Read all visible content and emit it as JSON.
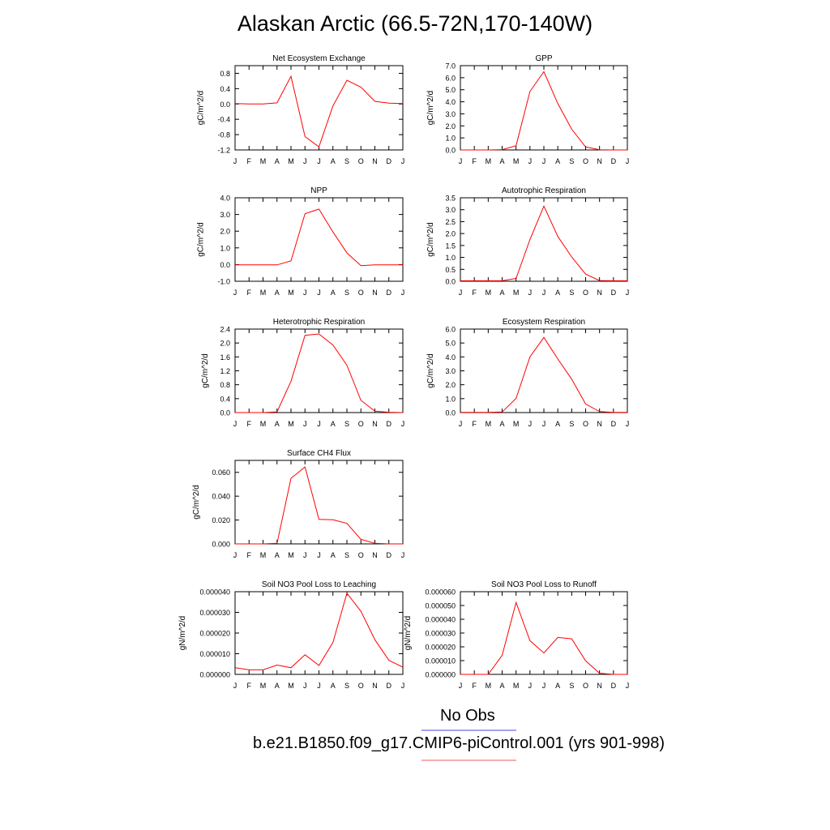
{
  "title": "Alaskan Arctic (66.5-72N,170-140W)",
  "month_labels": [
    "J",
    "F",
    "M",
    "A",
    "M",
    "J",
    "J",
    "A",
    "S",
    "O",
    "N",
    "D",
    "J"
  ],
  "legend": {
    "obs_label": "No Obs",
    "obs_color": "#6a6af0",
    "case_label": "b.e21.B1850.f09_g17.CMIP6-piControl.001 (yrs 901-998)",
    "case_color": "#f07a7a"
  },
  "line_color": "#ff0000",
  "chart_data": [
    {
      "type": "line",
      "title": "Net Ecosystem Exchange",
      "ylabel": "gC/m^2/d",
      "ylim": [
        -1.2,
        1.0
      ],
      "yticks": [
        -1.2,
        -0.8,
        -0.4,
        0.0,
        0.4,
        0.8
      ],
      "ytick_labels": [
        "-1.2",
        "-0.8",
        "-0.4",
        "0.0",
        "0.4",
        "0.8"
      ],
      "x": [
        1,
        2,
        3,
        4,
        5,
        6,
        7,
        8,
        9,
        10,
        11,
        12,
        13
      ],
      "values": [
        0.01,
        0.0,
        0.0,
        0.03,
        0.72,
        -0.85,
        -1.12,
        -0.05,
        0.62,
        0.44,
        0.07,
        0.02,
        0.01
      ]
    },
    {
      "type": "line",
      "title": "GPP",
      "ylabel": "gC/m^2/d",
      "ylim": [
        0,
        7
      ],
      "yticks": [
        0,
        1,
        2,
        3,
        4,
        5,
        6,
        7
      ],
      "ytick_labels": [
        "0.0",
        "1.0",
        "2.0",
        "3.0",
        "4.0",
        "5.0",
        "6.0",
        "7.0"
      ],
      "x": [
        1,
        2,
        3,
        4,
        5,
        6,
        7,
        8,
        9,
        10,
        11,
        12,
        13
      ],
      "values": [
        0,
        0,
        0,
        0.03,
        0.35,
        4.85,
        6.5,
        3.85,
        1.72,
        0.25,
        0.02,
        0,
        0
      ]
    },
    {
      "type": "line",
      "title": "NPP",
      "ylabel": "gC/m^2/d",
      "ylim": [
        -1,
        4
      ],
      "yticks": [
        -1,
        0,
        1,
        2,
        3,
        4
      ],
      "ytick_labels": [
        "-1.0",
        "0.0",
        "1.0",
        "2.0",
        "3.0",
        "4.0"
      ],
      "x": [
        1,
        2,
        3,
        4,
        5,
        6,
        7,
        8,
        9,
        10,
        11,
        12,
        13
      ],
      "values": [
        -0.02,
        -0.02,
        -0.02,
        -0.02,
        0.22,
        3.05,
        3.32,
        1.95,
        0.7,
        -0.07,
        -0.02,
        -0.02,
        -0.02
      ]
    },
    {
      "type": "line",
      "title": "Autotrophic Respiration",
      "ylabel": "gC/m^2/d",
      "ylim": [
        0,
        3.5
      ],
      "yticks": [
        0,
        0.5,
        1,
        1.5,
        2,
        2.5,
        3,
        3.5
      ],
      "ytick_labels": [
        "0.0",
        "0.5",
        "1.0",
        "1.5",
        "2.0",
        "2.5",
        "3.0",
        "3.5"
      ],
      "x": [
        1,
        2,
        3,
        4,
        5,
        6,
        7,
        8,
        9,
        10,
        11,
        12,
        13
      ],
      "values": [
        0.02,
        0.02,
        0.02,
        0.02,
        0.12,
        1.75,
        3.15,
        1.88,
        1.02,
        0.3,
        0.03,
        0.02,
        0.02
      ]
    },
    {
      "type": "line",
      "title": "Heterotrophic Respiration",
      "ylabel": "gC/m^2/d",
      "ylim": [
        0,
        2.4
      ],
      "yticks": [
        0,
        0.4,
        0.8,
        1.2,
        1.6,
        2.0,
        2.4
      ],
      "ytick_labels": [
        "0.0",
        "0.4",
        "0.8",
        "1.2",
        "1.6",
        "2.0",
        "2.4"
      ],
      "x": [
        1,
        2,
        3,
        4,
        5,
        6,
        7,
        8,
        9,
        10,
        11,
        12,
        13
      ],
      "values": [
        0.0,
        0.0,
        0.0,
        0.02,
        0.9,
        2.22,
        2.26,
        1.94,
        1.36,
        0.35,
        0.04,
        0.01,
        0.0
      ]
    },
    {
      "type": "line",
      "title": "Ecosystem Respiration",
      "ylabel": "gC/m^2/d",
      "ylim": [
        0,
        6
      ],
      "yticks": [
        0,
        1,
        2,
        3,
        4,
        5,
        6
      ],
      "ytick_labels": [
        "0.0",
        "1.0",
        "2.0",
        "3.0",
        "4.0",
        "5.0",
        "6.0"
      ],
      "x": [
        1,
        2,
        3,
        4,
        5,
        6,
        7,
        8,
        9,
        10,
        11,
        12,
        13
      ],
      "values": [
        0.02,
        0.02,
        0.02,
        0.04,
        1.02,
        4.0,
        5.4,
        3.85,
        2.4,
        0.62,
        0.07,
        0.02,
        0.02
      ]
    },
    {
      "type": "line",
      "title": "Surface CH4 Flux",
      "ylabel": "gC/m^2/d",
      "ylim": [
        0,
        0.07
      ],
      "yticks": [
        0,
        0.02,
        0.04,
        0.06
      ],
      "ytick_labels": [
        "0.000",
        "0.020",
        "0.040",
        "0.060"
      ],
      "x": [
        1,
        2,
        3,
        4,
        5,
        6,
        7,
        8,
        9,
        10,
        11,
        12,
        13
      ],
      "values": [
        0.0,
        0.0,
        0.0,
        0.0005,
        0.055,
        0.0645,
        0.0205,
        0.0202,
        0.0172,
        0.0038,
        0.0005,
        0.0,
        0.0
      ]
    },
    {
      "type": "line",
      "title": "Soil NO3 Pool Loss to Leaching",
      "ylabel": "gN/m^2/d",
      "ylim": [
        0,
        4e-05
      ],
      "yticks": [
        0,
        1e-05,
        2e-05,
        3e-05,
        4e-05
      ],
      "ytick_labels": [
        "0.000000",
        "0.000010",
        "0.000020",
        "0.000030",
        "0.000040"
      ],
      "x": [
        1,
        2,
        3,
        4,
        5,
        6,
        7,
        8,
        9,
        10,
        11,
        12,
        13
      ],
      "values": [
        3.2e-06,
        2.2e-06,
        2.2e-06,
        4.5e-06,
        3.2e-06,
        9.5e-06,
        4.3e-06,
        1.55e-05,
        3.93e-05,
        3.05e-05,
        1.68e-05,
        6.8e-06,
        3.5e-06
      ]
    },
    {
      "type": "line",
      "title": "Soil NO3 Pool Loss to Runoff",
      "ylabel": "gN/m^2/d",
      "ylim": [
        0,
        6e-05
      ],
      "yticks": [
        0,
        1e-05,
        2e-05,
        3e-05,
        4e-05,
        5e-05,
        6e-05
      ],
      "ytick_labels": [
        "0.000000",
        "0.000010",
        "0.000020",
        "0.000030",
        "0.000040",
        "0.000050",
        "0.000060"
      ],
      "x": [
        1,
        2,
        3,
        4,
        5,
        6,
        7,
        8,
        9,
        10,
        11,
        12,
        13
      ],
      "values": [
        0.0,
        0.0,
        0.0,
        1.38e-05,
        5.22e-05,
        2.45e-05,
        1.55e-05,
        2.68e-05,
        2.58e-05,
        9.8e-06,
        8e-07,
        0.0,
        0.0
      ]
    }
  ]
}
